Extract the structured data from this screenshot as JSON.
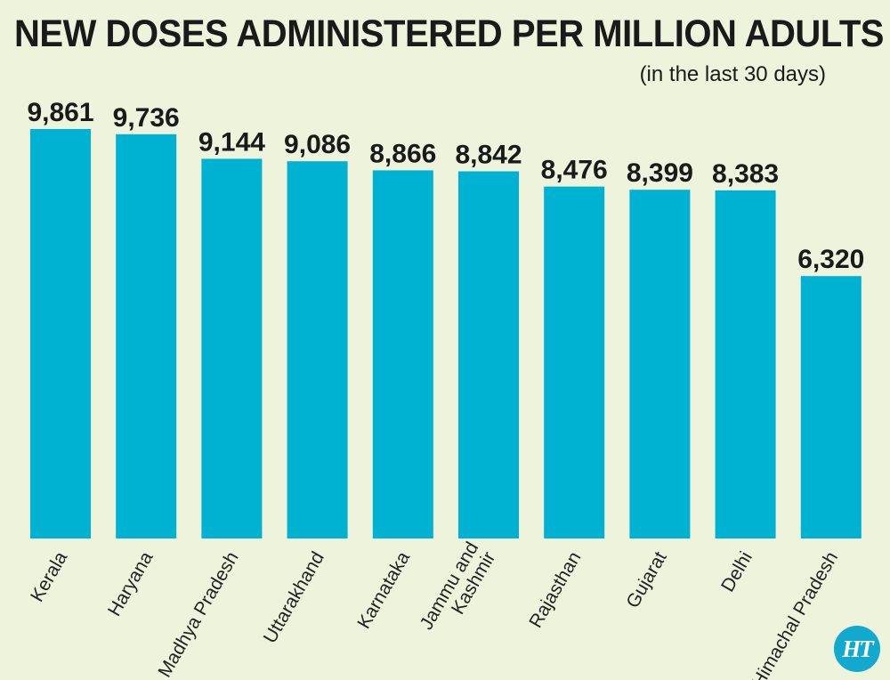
{
  "chart_data": {
    "type": "bar",
    "title": "NEW DOSES ADMINISTERED PER MILLION ADULTS",
    "subtitle": "(in the last 30 days)",
    "categories": [
      "Kerala",
      "Haryana",
      "Madhya Pradesh",
      "Uttarakhand",
      "Karnataka",
      "Jammu and Kashmir",
      "Rajasthan",
      "Gujarat",
      "Delhi",
      "Himachal Pradesh"
    ],
    "category_lines": [
      [
        "Kerala"
      ],
      [
        "Haryana"
      ],
      [
        "Madhya Pradesh"
      ],
      [
        "Uttarakhand"
      ],
      [
        "Karnataka"
      ],
      [
        "Jammu and",
        "Kashmir"
      ],
      [
        "Rajasthan"
      ],
      [
        "Gujarat"
      ],
      [
        "Delhi"
      ],
      [
        "Himachal Pradesh"
      ]
    ],
    "values": [
      9861,
      9736,
      9144,
      9086,
      8866,
      8842,
      8476,
      8399,
      8383,
      6320
    ],
    "value_labels": [
      "9,861",
      "9,736",
      "9,144",
      "9,086",
      "8,866",
      "8,842",
      "8,476",
      "8,399",
      "8,383",
      "6,320"
    ],
    "bar_color": "#00b2d2",
    "background_color": "#eef3dc",
    "axis_lines": false,
    "grid": false
  },
  "logo_text": "HT"
}
